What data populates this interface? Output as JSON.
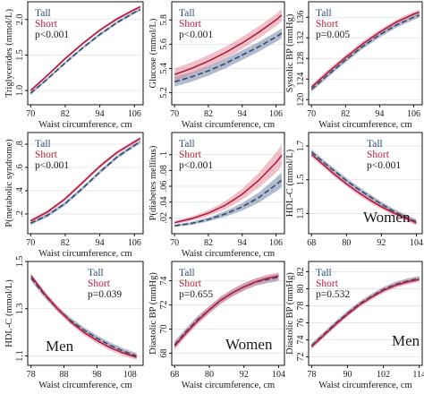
{
  "colors": {
    "tall": "#2f4b7c",
    "short": "#b01e3c",
    "tall_band": "#7f8eaa",
    "short_band": "#e48ea0"
  },
  "chart_data": [
    {
      "type": "line",
      "id": "p1",
      "xlabel": "Waist circumference, cm",
      "ylabel": "Triglycerides (mmol/L)",
      "xlim": [
        69,
        109
      ],
      "ylim": [
        0.8,
        2.25
      ],
      "xticks": [
        70,
        82,
        94,
        106
      ],
      "yticks": [
        1.0,
        1.5,
        2.0
      ],
      "ytick_labels": [
        "1.0",
        "1.5",
        "2.0"
      ],
      "x": [
        70,
        76,
        82,
        88,
        94,
        100,
        106,
        108
      ],
      "series": [
        {
          "name": "Tall",
          "style": "dashed",
          "values": [
            0.96,
            1.17,
            1.39,
            1.6,
            1.79,
            1.96,
            2.1,
            2.14
          ],
          "band": 0.02
        },
        {
          "name": "Short",
          "style": "solid",
          "values": [
            1.0,
            1.22,
            1.45,
            1.66,
            1.85,
            2.01,
            2.14,
            2.18
          ],
          "band": 0.02
        }
      ],
      "legend": {
        "tall": "Tall",
        "short": "Short",
        "p": "p<0.001"
      },
      "legend_pos": "top-left"
    },
    {
      "type": "line",
      "id": "p2",
      "xlabel": "Waist circumference, cm",
      "ylabel": "Glucose (mmol/L)",
      "xlim": [
        69,
        109
      ],
      "ylim": [
        5.1,
        5.95
      ],
      "xticks": [
        70,
        82,
        94,
        106
      ],
      "yticks": [
        5.2,
        5.4,
        5.6,
        5.8
      ],
      "ytick_labels": [
        "5.2",
        "5.4",
        "5.6",
        "5.8"
      ],
      "x": [
        70,
        76,
        82,
        88,
        94,
        100,
        106,
        108
      ],
      "series": [
        {
          "name": "Tall",
          "style": "dashed",
          "values": [
            5.29,
            5.33,
            5.38,
            5.44,
            5.51,
            5.58,
            5.66,
            5.69
          ],
          "band": 0.04
        },
        {
          "name": "Short",
          "style": "solid",
          "values": [
            5.35,
            5.4,
            5.46,
            5.53,
            5.61,
            5.7,
            5.8,
            5.84
          ],
          "band": 0.05
        }
      ],
      "legend": {
        "tall": "Tall",
        "short": "Short",
        "p": "p<0.001"
      },
      "legend_pos": "top-left"
    },
    {
      "type": "line",
      "id": "p3",
      "xlabel": "Waist circumference, cm",
      "ylabel": "Systolic BP (mmHg)",
      "xlim": [
        69,
        109
      ],
      "ylim": [
        119,
        139
      ],
      "xticks": [
        70,
        82,
        94,
        106
      ],
      "yticks": [
        120,
        124,
        128,
        132,
        136
      ],
      "ytick_labels": [
        "120",
        "124",
        "128",
        "132",
        "136"
      ],
      "x": [
        70,
        76,
        82,
        88,
        94,
        100,
        106,
        108
      ],
      "series": [
        {
          "name": "Tall",
          "style": "dashed",
          "values": [
            122.0,
            124.9,
            127.7,
            130.3,
            132.6,
            134.5,
            136.0,
            136.4
          ],
          "band": 0.5
        },
        {
          "name": "Short",
          "style": "solid",
          "values": [
            122.4,
            125.4,
            128.2,
            130.8,
            133.1,
            135.1,
            136.6,
            137.0
          ],
          "band": 0.5
        }
      ],
      "legend": {
        "tall": "Tall",
        "short": "Short",
        "p": "p=0.005"
      },
      "legend_pos": "top-left"
    },
    {
      "type": "line",
      "id": "p4",
      "xlabel": "Waist circumference, cm",
      "ylabel": "P(metabolic syndrome)",
      "xlim": [
        69,
        109
      ],
      "ylim": [
        0.03,
        0.9
      ],
      "xticks": [
        70,
        82,
        94,
        106
      ],
      "yticks": [
        0.2,
        0.4,
        0.6,
        0.8
      ],
      "ytick_labels": [
        ".2",
        ".4",
        ".6",
        ".8"
      ],
      "x": [
        70,
        76,
        82,
        88,
        94,
        100,
        106,
        108
      ],
      "series": [
        {
          "name": "Tall",
          "style": "dashed",
          "values": [
            0.12,
            0.19,
            0.29,
            0.42,
            0.56,
            0.69,
            0.79,
            0.82
          ],
          "band": 0.015
        },
        {
          "name": "Short",
          "style": "solid",
          "values": [
            0.14,
            0.22,
            0.33,
            0.47,
            0.61,
            0.73,
            0.82,
            0.85
          ],
          "band": 0.015
        }
      ],
      "legend": {
        "tall": "Tall",
        "short": "Short",
        "p": "p<0.001"
      },
      "legend_pos": "top-left"
    },
    {
      "type": "line",
      "id": "p5",
      "xlabel": "Waist circumference, cm",
      "ylabel": "P(diabetes mellitus)",
      "xlim": [
        69,
        109
      ],
      "ylim": [
        0.0,
        0.128
      ],
      "xticks": [
        70,
        82,
        94,
        106
      ],
      "yticks": [
        0.02,
        0.04,
        0.06,
        0.08,
        0.1
      ],
      "ytick_labels": [
        ".02",
        ".04",
        ".06",
        ".08",
        ".1"
      ],
      "x": [
        70,
        76,
        82,
        88,
        94,
        100,
        106,
        108
      ],
      "series": [
        {
          "name": "Tall",
          "style": "dashed",
          "values": [
            0.01,
            0.013,
            0.018,
            0.025,
            0.034,
            0.046,
            0.062,
            0.068
          ],
          "band_rel": 0.14
        },
        {
          "name": "Short",
          "style": "solid",
          "values": [
            0.014,
            0.019,
            0.026,
            0.036,
            0.05,
            0.068,
            0.09,
            0.099
          ],
          "band_rel": 0.14
        }
      ],
      "legend": {
        "tall": "Tall",
        "short": "Short",
        "p": "p<0.001"
      },
      "legend_pos": "top-left"
    },
    {
      "type": "line",
      "id": "p6",
      "xlabel": "",
      "ylabel": "HDL-C (mmol/L)",
      "xlim": [
        67,
        106
      ],
      "ylim": [
        1.18,
        1.78
      ],
      "xticks": [
        68,
        80,
        92,
        104
      ],
      "yticks": [
        1.3,
        1.5,
        1.7
      ],
      "ytick_labels": [
        "1.3",
        "1.5",
        "1.7"
      ],
      "x": [
        68,
        72,
        76,
        80,
        84,
        88,
        92,
        96,
        100,
        104
      ],
      "series": [
        {
          "name": "Tall",
          "style": "dashed",
          "values": [
            1.665,
            1.605,
            1.55,
            1.495,
            1.445,
            1.4,
            1.355,
            1.315,
            1.28,
            1.25
          ],
          "band": 0.015
        },
        {
          "name": "Short",
          "style": "solid",
          "values": [
            1.65,
            1.59,
            1.53,
            1.475,
            1.425,
            1.38,
            1.34,
            1.305,
            1.275,
            1.245
          ],
          "band": 0.015
        }
      ],
      "legend": {
        "tall": "Tall",
        "short": "Short",
        "p": "p<0.001"
      },
      "legend_pos": "top-right",
      "annotation": "Women"
    },
    {
      "type": "line",
      "id": "p7",
      "xlabel": "Waist circumference, cm",
      "ylabel": "HDL-C (mmol/L)",
      "xlim": [
        77,
        112
      ],
      "ylim": [
        1.06,
        1.5
      ],
      "xticks": [
        78,
        88,
        98,
        108
      ],
      "yticks": [
        1.1,
        1.3,
        1.5
      ],
      "ytick_labels": [
        "1.1",
        "1.3",
        "1.5"
      ],
      "x": [
        78,
        82,
        86,
        90,
        94,
        98,
        102,
        106,
        110
      ],
      "series": [
        {
          "name": "Tall",
          "style": "dashed",
          "values": [
            1.43,
            1.36,
            1.3,
            1.25,
            1.21,
            1.175,
            1.145,
            1.12,
            1.1
          ],
          "band": 0.012
        },
        {
          "name": "Short",
          "style": "solid",
          "values": [
            1.44,
            1.365,
            1.3,
            1.245,
            1.2,
            1.165,
            1.135,
            1.112,
            1.095
          ],
          "band": 0.012
        }
      ],
      "legend": {
        "tall": "Tall",
        "short": "Short",
        "p": "p=0.039"
      },
      "legend_pos": "top-right",
      "annotation": "Men"
    },
    {
      "type": "line",
      "id": "p8",
      "xlabel": "Waist circumference, cm",
      "ylabel": "Diastolic BP (mmHg)",
      "xlim": [
        67,
        106
      ],
      "ylim": [
        67.0,
        75.6
      ],
      "xticks": [
        68,
        80,
        92,
        104
      ],
      "yticks": [
        68,
        70,
        72,
        74
      ],
      "ytick_labels": [
        "68",
        "70",
        "72",
        "74"
      ],
      "x": [
        68,
        72,
        76,
        80,
        84,
        88,
        92,
        96,
        100,
        104
      ],
      "series": [
        {
          "name": "Tall",
          "style": "dashed",
          "values": [
            68.7,
            69.8,
            70.8,
            71.6,
            72.4,
            73.0,
            73.5,
            73.9,
            74.1,
            74.3
          ],
          "band": 0.3
        },
        {
          "name": "Short",
          "style": "solid",
          "values": [
            68.6,
            69.7,
            70.7,
            71.6,
            72.4,
            73.0,
            73.5,
            73.9,
            74.2,
            74.4
          ],
          "band": 0.3
        }
      ],
      "legend": {
        "tall": "Tall",
        "short": "Short",
        "p": "p=0.655"
      },
      "legend_pos": "top-left",
      "annotation": "Women"
    },
    {
      "type": "line",
      "id": "p9",
      "xlabel": "Waist circumference, cm",
      "ylabel": "Diastolic BP (mmHg)",
      "xlim": [
        77,
        115
      ],
      "ylim": [
        71.0,
        83.2
      ],
      "xticks": [
        78,
        90,
        102,
        114
      ],
      "yticks": [
        72,
        74,
        76,
        78,
        80,
        82
      ],
      "ytick_labels": [
        "72",
        "74",
        "76",
        "78",
        "80",
        "82"
      ],
      "x": [
        78,
        82,
        86,
        90,
        94,
        98,
        102,
        106,
        110,
        114
      ],
      "series": [
        {
          "name": "Tall",
          "style": "dashed",
          "values": [
            73.3,
            74.6,
            75.9,
            77.1,
            78.2,
            79.1,
            79.9,
            80.5,
            80.9,
            81.2
          ],
          "band": 0.3
        },
        {
          "name": "Short",
          "style": "solid",
          "values": [
            73.2,
            74.5,
            75.8,
            77.0,
            78.1,
            79.0,
            79.8,
            80.4,
            80.8,
            81.1
          ],
          "band": 0.3
        }
      ],
      "legend": {
        "tall": "Tall",
        "short": "Short",
        "p": "p=0.532"
      },
      "legend_pos": "top-left",
      "annotation": "Men"
    }
  ]
}
